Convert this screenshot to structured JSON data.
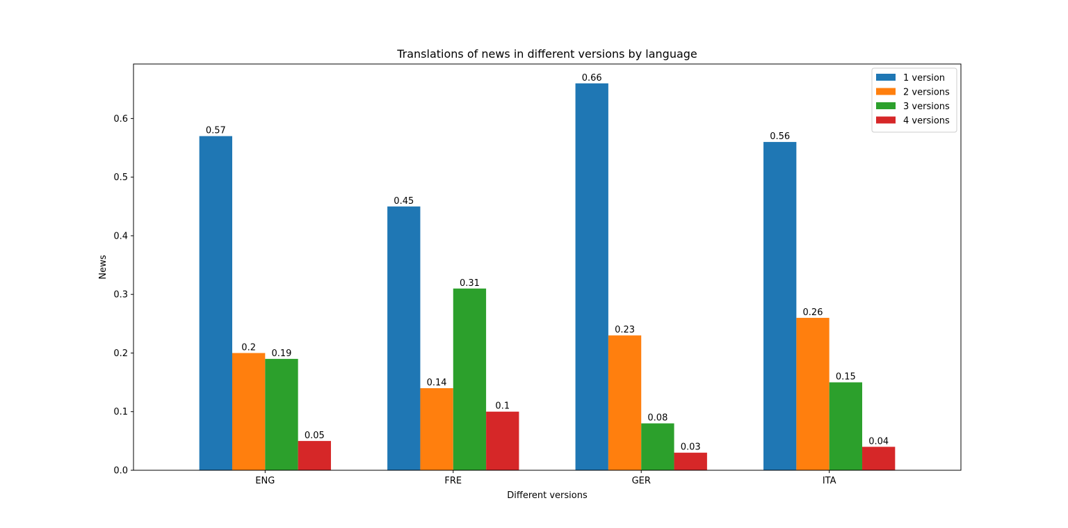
{
  "chart_data": {
    "type": "bar",
    "title": "Translations of news in different versions by language",
    "xlabel": "Different versions",
    "ylabel": "News",
    "categories": [
      "ENG",
      "FRE",
      "GER",
      "ITA"
    ],
    "ylim": [
      0,
      0.693
    ],
    "yticks": [
      "0.0",
      "0.1",
      "0.2",
      "0.3",
      "0.4",
      "0.5",
      "0.6"
    ],
    "legend_position": "top-right",
    "grid": false,
    "series": [
      {
        "name": "1 version",
        "color": "#1f77b4",
        "values": [
          0.57,
          0.45,
          0.66,
          0.56
        ],
        "labels": [
          "0.57",
          "0.45",
          "0.66",
          "0.56"
        ]
      },
      {
        "name": "2 versions",
        "color": "#ff7f0e",
        "values": [
          0.2,
          0.14,
          0.23,
          0.26
        ],
        "labels": [
          "0.2",
          "0.14",
          "0.23",
          "0.26"
        ]
      },
      {
        "name": "3 versions",
        "color": "#2ca02c",
        "values": [
          0.19,
          0.31,
          0.08,
          0.15
        ],
        "labels": [
          "0.19",
          "0.31",
          "0.08",
          "0.15"
        ]
      },
      {
        "name": "4 versions",
        "color": "#d62728",
        "values": [
          0.05,
          0.1,
          0.03,
          0.04
        ],
        "labels": [
          "0.05",
          "0.1",
          "0.03",
          "0.04"
        ]
      }
    ]
  }
}
